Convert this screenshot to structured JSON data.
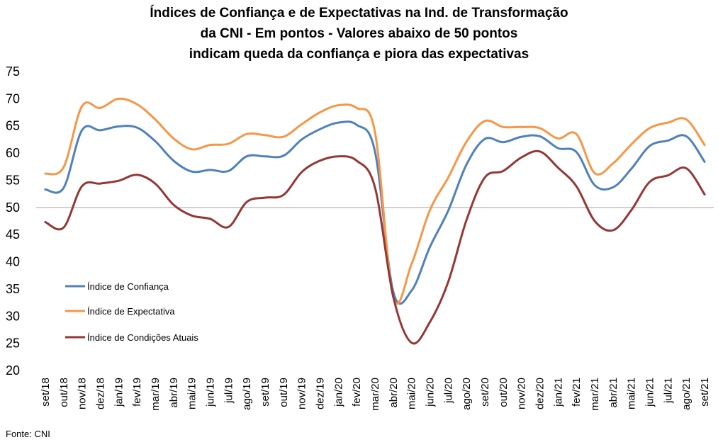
{
  "source": "Fonte: CNI",
  "chart_data": {
    "type": "line",
    "title_lines": [
      "Índices de Confiança e de Expectativas na Ind. de Transformação",
      "da CNI - Em pontos - Valores abaixo de 50 pontos",
      "indicam queda da confiança e piora das expectativas"
    ],
    "categories": [
      "set/18",
      "out/18",
      "nov/18",
      "dez/18",
      "jan/19",
      "fev/19",
      "mar/19",
      "abr/19",
      "mai/19",
      "jun/19",
      "jul/19",
      "ago/19",
      "set/19",
      "out/19",
      "nov/19",
      "dez/19",
      "jan/20",
      "fev/20",
      "mar/20",
      "abr/20",
      "mai/20",
      "jun/20",
      "jul/20",
      "ago/20",
      "set/20",
      "out/20",
      "nov/20",
      "dez/20",
      "jan/21",
      "fev/21",
      "mar/21",
      "abr/21",
      "mai/21",
      "jun/21",
      "jul/21",
      "ago/21",
      "set/21"
    ],
    "ylim": [
      20,
      75
    ],
    "yticks": [
      20,
      25,
      30,
      35,
      40,
      45,
      50,
      55,
      60,
      65,
      70,
      75
    ],
    "reference_line": 50,
    "grid": false,
    "legend_position": "left-middle",
    "series": [
      {
        "name": "Índice de Confiança",
        "color": "#4f81bd",
        "values": [
          53.3,
          53.6,
          64.2,
          64.2,
          64.9,
          64.7,
          62.2,
          58.6,
          56.6,
          56.9,
          56.7,
          59.4,
          59.4,
          59.5,
          62.5,
          64.4,
          65.6,
          65.2,
          60.3,
          34.5,
          34.7,
          42.7,
          49.4,
          57.9,
          62.6,
          62.0,
          63.0,
          63.1,
          60.9,
          60.2,
          54.1,
          53.7,
          57.1,
          61.3,
          62.3,
          63.1,
          58.4
        ]
      },
      {
        "name": "Índice de Expectativa",
        "color": "#f79646",
        "values": [
          56.2,
          57.4,
          68.6,
          68.3,
          70.0,
          69.0,
          66.2,
          62.7,
          60.7,
          61.5,
          61.7,
          63.5,
          63.3,
          63.0,
          65.3,
          67.5,
          68.8,
          68.3,
          63.9,
          33.5,
          39.6,
          49.5,
          55.5,
          62.1,
          65.9,
          64.8,
          64.8,
          64.6,
          62.7,
          63.5,
          56.3,
          58.1,
          61.6,
          64.6,
          65.6,
          66.2,
          61.5
        ]
      },
      {
        "name": "Índice de Condições Atuais",
        "color": "#953735",
        "values": [
          47.3,
          46.3,
          53.9,
          54.4,
          54.9,
          56.0,
          54.4,
          50.5,
          48.5,
          47.9,
          46.4,
          51.0,
          51.8,
          52.3,
          56.5,
          58.6,
          59.4,
          58.6,
          53.7,
          33.6,
          25.1,
          28.9,
          36.3,
          47.7,
          55.5,
          56.7,
          59.2,
          60.3,
          57.3,
          53.9,
          47.5,
          45.8,
          49.5,
          54.7,
          55.9,
          57.2,
          52.4
        ]
      }
    ]
  }
}
